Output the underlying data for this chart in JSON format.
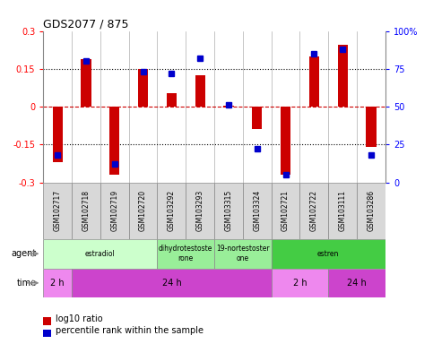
{
  "title": "GDS2077 / 875",
  "samples": [
    "GSM102717",
    "GSM102718",
    "GSM102719",
    "GSM102720",
    "GSM103292",
    "GSM103293",
    "GSM103315",
    "GSM103324",
    "GSM102721",
    "GSM102722",
    "GSM103111",
    "GSM103286"
  ],
  "log10_ratio": [
    -0.22,
    0.19,
    -0.27,
    0.148,
    0.055,
    0.125,
    0.005,
    -0.09,
    -0.27,
    0.2,
    0.245,
    -0.16
  ],
  "percentile": [
    18,
    80,
    12,
    73,
    72,
    82,
    51,
    22,
    5,
    85,
    88,
    18
  ],
  "ylim": [
    -0.3,
    0.3
  ],
  "yticks": [
    -0.3,
    -0.15,
    0,
    0.15,
    0.3
  ],
  "ytick_labels": [
    "-0.3",
    "-0.15",
    "0",
    "0.15",
    "0.3"
  ],
  "y2ticks": [
    0,
    25,
    50,
    75,
    100
  ],
  "y2tick_labels": [
    "0",
    "25",
    "50",
    "75",
    "100%"
  ],
  "bar_color": "#cc0000",
  "dot_color": "#0000cc",
  "hline_color": "#cc0000",
  "dotted_color": "#000000",
  "agent_groups": [
    {
      "label": "estradiol",
      "start": 0,
      "end": 4,
      "color": "#ccffcc"
    },
    {
      "label": "dihydrotestoste\nrone",
      "start": 4,
      "end": 6,
      "color": "#99ee99"
    },
    {
      "label": "19-nortestoster\none",
      "start": 6,
      "end": 8,
      "color": "#99ee99"
    },
    {
      "label": "estren",
      "start": 8,
      "end": 12,
      "color": "#44cc44"
    }
  ],
  "time_groups": [
    {
      "label": "2 h",
      "start": 0,
      "end": 1,
      "color": "#ee88ee"
    },
    {
      "label": "24 h",
      "start": 1,
      "end": 8,
      "color": "#cc44cc"
    },
    {
      "label": "2 h",
      "start": 8,
      "end": 10,
      "color": "#ee88ee"
    },
    {
      "label": "24 h",
      "start": 10,
      "end": 12,
      "color": "#cc44cc"
    }
  ],
  "legend_red": "log10 ratio",
  "legend_blue": "percentile rank within the sample",
  "bg_color": "#ffffff",
  "label_bg": "#d8d8d8",
  "agent_label": "agent",
  "time_label": "time"
}
